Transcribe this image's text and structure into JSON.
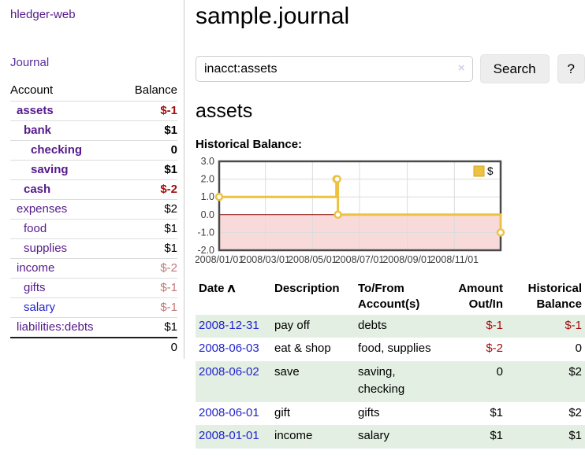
{
  "app": {
    "title": "hledger-web"
  },
  "sidebar": {
    "journal_label": "Journal",
    "accounts": {
      "header_account": "Account",
      "header_balance": "Balance",
      "rows": [
        {
          "name": "assets",
          "balance": "$-1"
        },
        {
          "name": "bank",
          "balance": "$1"
        },
        {
          "name": "checking",
          "balance": "0"
        },
        {
          "name": "saving",
          "balance": "$1"
        },
        {
          "name": "cash",
          "balance": "$-2"
        },
        {
          "name": "expenses",
          "balance": "$2"
        },
        {
          "name": "food",
          "balance": "$1"
        },
        {
          "name": "supplies",
          "balance": "$1"
        },
        {
          "name": "income",
          "balance": "$-2"
        },
        {
          "name": "gifts",
          "balance": "$-1"
        },
        {
          "name": "salary",
          "balance": "$-1"
        },
        {
          "name": "liabilities:debts",
          "balance": "$1"
        }
      ],
      "total": "0"
    }
  },
  "main": {
    "title": "sample.journal",
    "search": {
      "value": "inacct:assets",
      "clear_icon": "×",
      "button_label": "Search",
      "help_label": "?"
    },
    "section_title": "assets",
    "chart_label": "Historical Balance:",
    "register": {
      "headers": {
        "date": "Date",
        "sort_icon": "∧",
        "description": "Description",
        "accounts": "To/From Account(s)",
        "amount": "Amount Out/In",
        "balance": "Historical Balance"
      },
      "rows": [
        {
          "date": "2008-12-31",
          "description": "pay off",
          "accounts": "debts",
          "amount": "$-1",
          "balance": "$-1"
        },
        {
          "date": "2008-06-03",
          "description": "eat & shop",
          "accounts": "food, supplies",
          "amount": "$-2",
          "balance": "0"
        },
        {
          "date": "2008-06-02",
          "description": "save",
          "accounts": "saving, checking",
          "amount": "0",
          "balance": "$2"
        },
        {
          "date": "2008-06-01",
          "description": "gift",
          "accounts": "gifts",
          "amount": "$1",
          "balance": "$2"
        },
        {
          "date": "2008-01-01",
          "description": "income",
          "accounts": "salary",
          "amount": "$1",
          "balance": "$1"
        }
      ]
    }
  },
  "chart_data": {
    "type": "line",
    "step": true,
    "title": "Historical Balance",
    "series": [
      {
        "name": "$",
        "color": "#edc240",
        "points": [
          [
            "2008-01-01",
            1
          ],
          [
            "2008-06-01",
            2
          ],
          [
            "2008-06-02",
            2
          ],
          [
            "2008-06-03",
            0
          ],
          [
            "2008-12-31",
            -1
          ]
        ]
      }
    ],
    "ylim": [
      -2,
      3
    ],
    "yticks": [
      3,
      2,
      1,
      0,
      -1,
      -2
    ],
    "xrange": [
      "2008-01-01",
      "2008-12-31"
    ],
    "xticks": [
      "2008/01/01",
      "2008/03/01",
      "2008/05/01",
      "2008/07/01",
      "2008/09/01",
      "2008/11/01"
    ],
    "legend_position": "top-right",
    "grid": true,
    "negative_fill": "#f9dada",
    "zero_line_color": "#8b0000"
  },
  "colors": {
    "accent_purple": "#551a8b",
    "link_blue": "#2323cc",
    "negative_strong": "#a40d0d",
    "negative_soft": "#c17878",
    "row_shade_green": "#e3efe3",
    "series_gold": "#edc240",
    "chart_border": "#4a4a4a"
  }
}
